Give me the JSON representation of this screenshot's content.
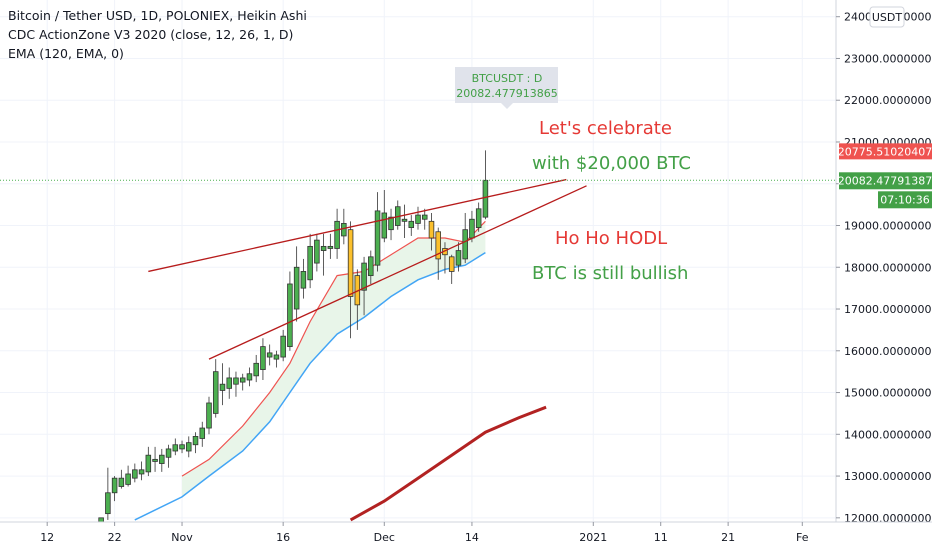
{
  "legend": {
    "line1": "Bitcoin / Tether USD, 1D, POLONIEX, Heikin Ashi",
    "line2": "CDC ActionZone V3 2020 (close, 12, 26, 1, D)",
    "line3": "EMA (120, EMA, 0)"
  },
  "currency_button": "USDT",
  "tooltip": {
    "title": "BTCUSDT : D",
    "value": "20082.477913865"
  },
  "annotations": {
    "celebrate1": "Let's celebrate",
    "celebrate2": "with $20,000 BTC",
    "hodl": "Ho Ho HODL",
    "bullish": "BTC is still bullish"
  },
  "price_labels": {
    "upper": "20775.51020407",
    "current": "20082.47791387",
    "countdown": "07:10:36"
  },
  "colors": {
    "bull_candle": "#4caf50",
    "neutral_candle": "#fbc02d",
    "ema_fast": "#ef5350",
    "ema_slow": "#42a5f5",
    "ema_120": "#b22222",
    "trendline": "#b71c1c",
    "zone_fill": "#e8f5e9",
    "red_text": "#e53935",
    "green_text": "#43a047"
  },
  "chart_data": {
    "type": "candlestick",
    "y_ticks": [
      "12000.00000000",
      "13000.00000000",
      "14000.00000000",
      "15000.00000000",
      "16000.00000000",
      "17000.00000000",
      "18000.00000000",
      "19000.00000000",
      "20000.00000000",
      "21000.00000000",
      "22000.00000000",
      "23000.00000000",
      "24000.00000000"
    ],
    "y_tick_values": [
      12000,
      13000,
      14000,
      15000,
      16000,
      17000,
      18000,
      19000,
      20000,
      21000,
      22000,
      23000,
      24000
    ],
    "ylim": [
      11900,
      24400
    ],
    "x_ticks": [
      "12",
      "22",
      "Nov",
      "16",
      "Dec",
      "14",
      "2021",
      "11",
      "21",
      "Fe"
    ],
    "x_tick_dates": [
      "2020-10-12",
      "2020-10-22",
      "2020-11-01",
      "2020-11-16",
      "2020-12-01",
      "2020-12-14",
      "2021-01-01",
      "2021-01-11",
      "2021-01-21",
      "2021-02-01"
    ],
    "xlim": [
      "2020-10-05",
      "2021-02-06"
    ],
    "candles": [
      {
        "d": "2020-10-20",
        "o": 11900,
        "h": 12000,
        "l": 11850,
        "c": 12000,
        "t": "bull"
      },
      {
        "d": "2020-10-21",
        "o": 12100,
        "h": 13200,
        "l": 11950,
        "c": 12600,
        "t": "bull"
      },
      {
        "d": "2020-10-22",
        "o": 12600,
        "h": 13000,
        "l": 12400,
        "c": 12950,
        "t": "bull"
      },
      {
        "d": "2020-10-23",
        "o": 12750,
        "h": 13150,
        "l": 12700,
        "c": 12950,
        "t": "bull"
      },
      {
        "d": "2020-10-24",
        "o": 12800,
        "h": 13250,
        "l": 12750,
        "c": 13050,
        "t": "bull"
      },
      {
        "d": "2020-10-25",
        "o": 12950,
        "h": 13300,
        "l": 12850,
        "c": 13150,
        "t": "bull"
      },
      {
        "d": "2020-10-26",
        "o": 13050,
        "h": 13350,
        "l": 12900,
        "c": 13150,
        "t": "bull"
      },
      {
        "d": "2020-10-27",
        "o": 13100,
        "h": 13700,
        "l": 13000,
        "c": 13500,
        "t": "bull"
      },
      {
        "d": "2020-10-28",
        "o": 13350,
        "h": 13700,
        "l": 13100,
        "c": 13400,
        "t": "bull"
      },
      {
        "d": "2020-10-29",
        "o": 13300,
        "h": 13650,
        "l": 13100,
        "c": 13500,
        "t": "bull"
      },
      {
        "d": "2020-10-30",
        "o": 13450,
        "h": 13750,
        "l": 13200,
        "c": 13650,
        "t": "bull"
      },
      {
        "d": "2020-10-31",
        "o": 13600,
        "h": 13900,
        "l": 13500,
        "c": 13750,
        "t": "bull"
      },
      {
        "d": "2020-11-01",
        "o": 13650,
        "h": 13850,
        "l": 13550,
        "c": 13750,
        "t": "bull"
      },
      {
        "d": "2020-11-02",
        "o": 13600,
        "h": 13950,
        "l": 13450,
        "c": 13800,
        "t": "bull"
      },
      {
        "d": "2020-11-03",
        "o": 13750,
        "h": 14050,
        "l": 13550,
        "c": 13950,
        "t": "bull"
      },
      {
        "d": "2020-11-04",
        "o": 13900,
        "h": 14300,
        "l": 13700,
        "c": 14150,
        "t": "bull"
      },
      {
        "d": "2020-11-05",
        "o": 14150,
        "h": 14900,
        "l": 14000,
        "c": 14750,
        "t": "bull"
      },
      {
        "d": "2020-11-06",
        "o": 14500,
        "h": 15800,
        "l": 14400,
        "c": 15500,
        "t": "bull"
      },
      {
        "d": "2020-11-07",
        "o": 15050,
        "h": 15700,
        "l": 14700,
        "c": 15200,
        "t": "bull"
      },
      {
        "d": "2020-11-08",
        "o": 15100,
        "h": 15600,
        "l": 14850,
        "c": 15350,
        "t": "bull"
      },
      {
        "d": "2020-11-09",
        "o": 15200,
        "h": 15500,
        "l": 14900,
        "c": 15350,
        "t": "bull"
      },
      {
        "d": "2020-11-10",
        "o": 15250,
        "h": 15450,
        "l": 15050,
        "c": 15350,
        "t": "bull"
      },
      {
        "d": "2020-11-11",
        "o": 15300,
        "h": 15600,
        "l": 15150,
        "c": 15450,
        "t": "bull"
      },
      {
        "d": "2020-11-12",
        "o": 15400,
        "h": 15900,
        "l": 15250,
        "c": 15700,
        "t": "bull"
      },
      {
        "d": "2020-11-13",
        "o": 15550,
        "h": 16300,
        "l": 15300,
        "c": 16100,
        "t": "bull"
      },
      {
        "d": "2020-11-14",
        "o": 15850,
        "h": 16150,
        "l": 15650,
        "c": 15950,
        "t": "bull"
      },
      {
        "d": "2020-11-15",
        "o": 15800,
        "h": 16000,
        "l": 15600,
        "c": 15900,
        "t": "bull"
      },
      {
        "d": "2020-11-16",
        "o": 15850,
        "h": 16500,
        "l": 15750,
        "c": 16350,
        "t": "bull"
      },
      {
        "d": "2020-11-17",
        "o": 16100,
        "h": 17900,
        "l": 16000,
        "c": 17600,
        "t": "bull"
      },
      {
        "d": "2020-11-18",
        "o": 17000,
        "h": 18500,
        "l": 16700,
        "c": 18000,
        "t": "bull"
      },
      {
        "d": "2020-11-19",
        "o": 17500,
        "h": 18200,
        "l": 17250,
        "c": 17900,
        "t": "bull"
      },
      {
        "d": "2020-11-20",
        "o": 17700,
        "h": 18800,
        "l": 17500,
        "c": 18500,
        "t": "bull"
      },
      {
        "d": "2020-11-21",
        "o": 18100,
        "h": 18800,
        "l": 17900,
        "c": 18650,
        "t": "bull"
      },
      {
        "d": "2020-11-22",
        "o": 18400,
        "h": 18800,
        "l": 17800,
        "c": 18500,
        "t": "bull"
      },
      {
        "d": "2020-11-23",
        "o": 18450,
        "h": 18800,
        "l": 18200,
        "c": 18500,
        "t": "bull"
      },
      {
        "d": "2020-11-24",
        "o": 18450,
        "h": 19400,
        "l": 18200,
        "c": 19100,
        "t": "bull"
      },
      {
        "d": "2020-11-25",
        "o": 18750,
        "h": 19400,
        "l": 18550,
        "c": 19050,
        "t": "bull"
      },
      {
        "d": "2020-11-26",
        "o": 18900,
        "h": 19100,
        "l": 16300,
        "c": 17300,
        "t": "neutral"
      },
      {
        "d": "2020-11-27",
        "o": 17100,
        "h": 17950,
        "l": 16500,
        "c": 17800,
        "t": "neutral"
      },
      {
        "d": "2020-11-28",
        "o": 17450,
        "h": 18250,
        "l": 16850,
        "c": 18100,
        "t": "bull"
      },
      {
        "d": "2020-11-29",
        "o": 17800,
        "h": 18400,
        "l": 17600,
        "c": 18250,
        "t": "bull"
      },
      {
        "d": "2020-11-30",
        "o": 18050,
        "h": 19800,
        "l": 17900,
        "c": 19350,
        "t": "bull"
      },
      {
        "d": "2020-12-01",
        "o": 18700,
        "h": 19850,
        "l": 18600,
        "c": 19300,
        "t": "bull"
      },
      {
        "d": "2020-12-02",
        "o": 18900,
        "h": 19400,
        "l": 18650,
        "c": 19200,
        "t": "bull"
      },
      {
        "d": "2020-12-03",
        "o": 19000,
        "h": 19600,
        "l": 18900,
        "c": 19450,
        "t": "bull"
      },
      {
        "d": "2020-12-04",
        "o": 19150,
        "h": 19500,
        "l": 18700,
        "c": 19100,
        "t": "bull"
      },
      {
        "d": "2020-12-05",
        "o": 18950,
        "h": 19250,
        "l": 18750,
        "c": 19100,
        "t": "bull"
      },
      {
        "d": "2020-12-06",
        "o": 19050,
        "h": 19450,
        "l": 18900,
        "c": 19250,
        "t": "bull"
      },
      {
        "d": "2020-12-07",
        "o": 19150,
        "h": 19400,
        "l": 18900,
        "c": 19250,
        "t": "bull"
      },
      {
        "d": "2020-12-08",
        "o": 19100,
        "h": 19300,
        "l": 18400,
        "c": 18700,
        "t": "neutral"
      },
      {
        "d": "2020-12-09",
        "o": 18850,
        "h": 18950,
        "l": 17700,
        "c": 18200,
        "t": "neutral"
      },
      {
        "d": "2020-12-10",
        "o": 18450,
        "h": 18600,
        "l": 17850,
        "c": 18300,
        "t": "neutral"
      },
      {
        "d": "2020-12-11",
        "o": 18250,
        "h": 18300,
        "l": 17600,
        "c": 17900,
        "t": "neutral"
      },
      {
        "d": "2020-12-12",
        "o": 18050,
        "h": 18600,
        "l": 17900,
        "c": 18400,
        "t": "bull"
      },
      {
        "d": "2020-12-13",
        "o": 18200,
        "h": 19300,
        "l": 18100,
        "c": 18900,
        "t": "bull"
      },
      {
        "d": "2020-12-14",
        "o": 18700,
        "h": 19350,
        "l": 18600,
        "c": 19150,
        "t": "bull"
      },
      {
        "d": "2020-12-15",
        "o": 18950,
        "h": 19550,
        "l": 18850,
        "c": 19400,
        "t": "bull"
      },
      {
        "d": "2020-12-16",
        "o": 19200,
        "h": 20800,
        "l": 19150,
        "c": 20082
      }
    ],
    "ema_fast": [
      [
        "2020-11-01",
        13000
      ],
      [
        "2020-11-05",
        13400
      ],
      [
        "2020-11-10",
        14200
      ],
      [
        "2020-11-14",
        15000
      ],
      [
        "2020-11-17",
        15700
      ],
      [
        "2020-11-20",
        16700
      ],
      [
        "2020-11-24",
        17800
      ],
      [
        "2020-11-28",
        17900
      ],
      [
        "2020-12-02",
        18300
      ],
      [
        "2020-12-06",
        18700
      ],
      [
        "2020-12-10",
        18700
      ],
      [
        "2020-12-13",
        18600
      ],
      [
        "2020-12-16",
        19100
      ]
    ],
    "ema_slow": [
      [
        "2020-10-25",
        11950
      ],
      [
        "2020-11-01",
        12500
      ],
      [
        "2020-11-05",
        13000
      ],
      [
        "2020-11-10",
        13600
      ],
      [
        "2020-11-14",
        14300
      ],
      [
        "2020-11-17",
        15000
      ],
      [
        "2020-11-20",
        15700
      ],
      [
        "2020-11-24",
        16400
      ],
      [
        "2020-11-28",
        16800
      ],
      [
        "2020-12-02",
        17300
      ],
      [
        "2020-12-06",
        17700
      ],
      [
        "2020-12-10",
        17950
      ],
      [
        "2020-12-13",
        18050
      ],
      [
        "2020-12-16",
        18350
      ]
    ],
    "ema_120": [
      [
        "2020-11-26",
        11950
      ],
      [
        "2020-12-01",
        12400
      ],
      [
        "2020-12-06",
        12950
      ],
      [
        "2020-12-11",
        13500
      ],
      [
        "2020-12-16",
        14050
      ],
      [
        "2020-12-21",
        14400
      ],
      [
        "2020-12-25",
        14650
      ]
    ],
    "trendlines": [
      {
        "from": [
          "2020-10-27",
          17900
        ],
        "to": [
          "2020-12-28",
          20100
        ]
      },
      {
        "from": [
          "2020-11-05",
          15800
        ],
        "to": [
          "2020-12-31",
          19950
        ]
      }
    ],
    "current_price": 20082.47791387,
    "upper_price": 20775.51020407
  }
}
